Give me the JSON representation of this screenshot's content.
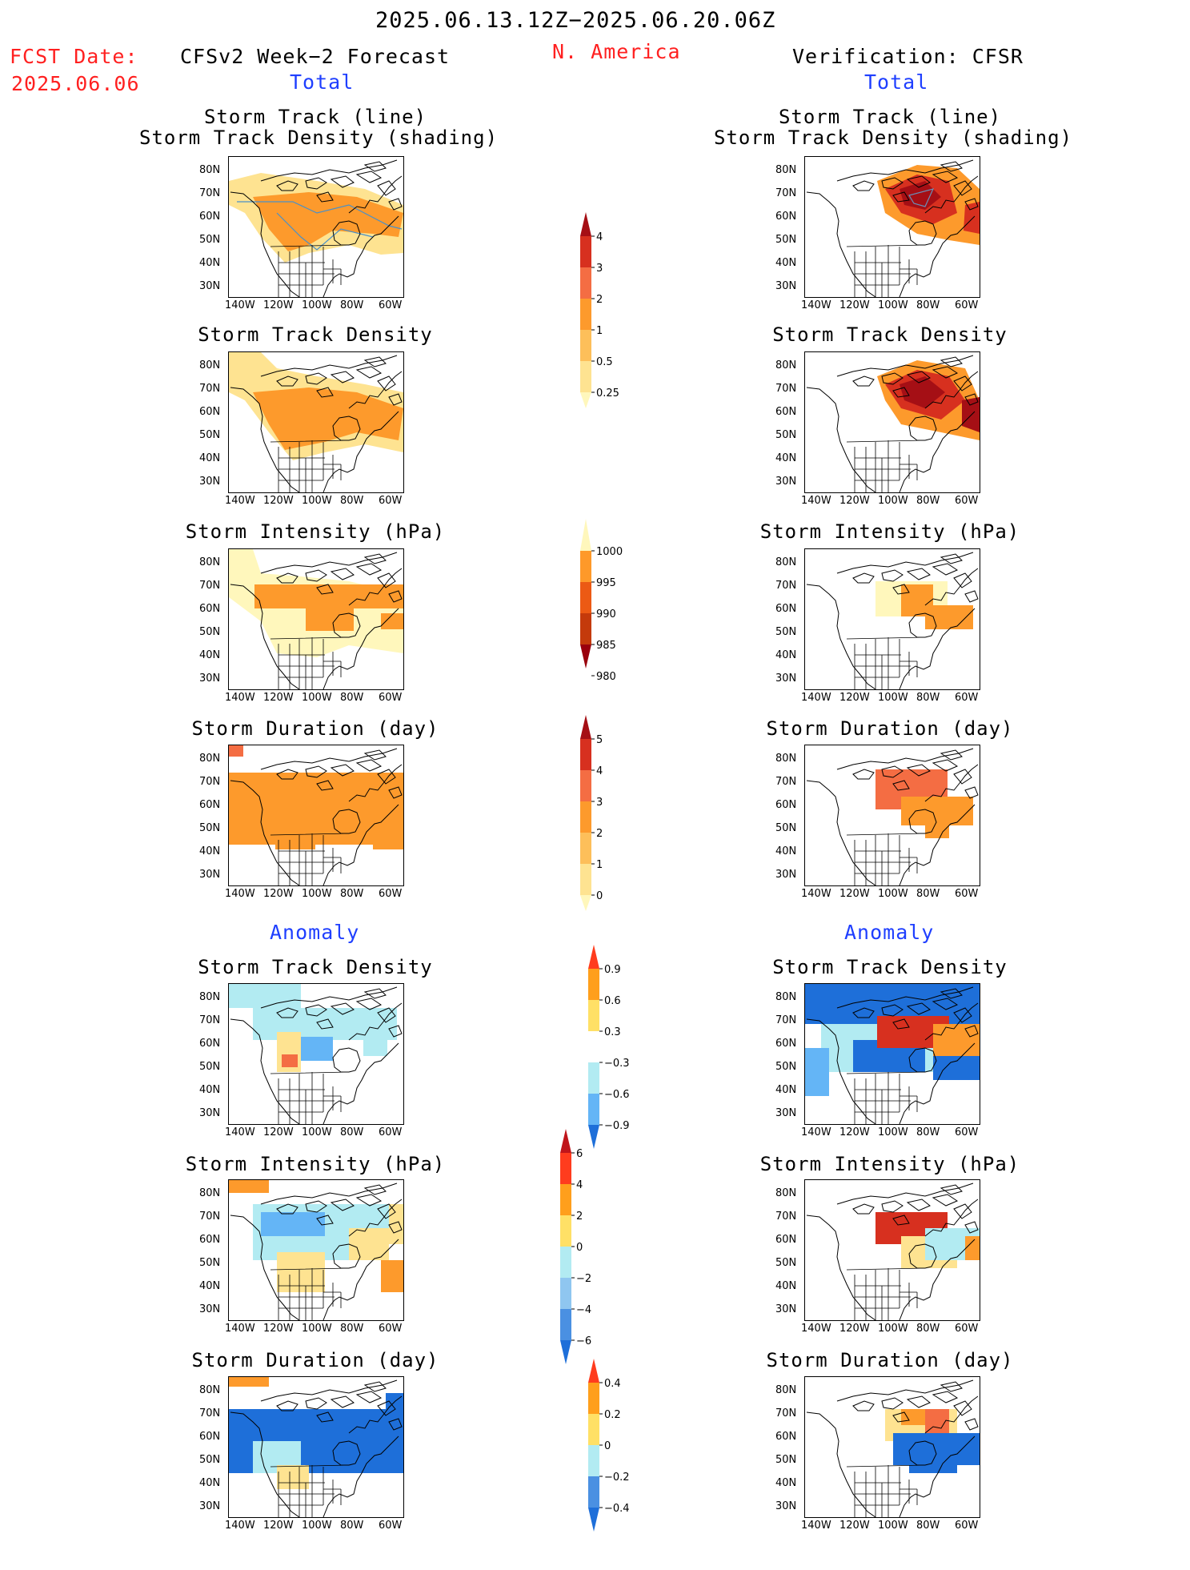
{
  "header": {
    "period": "2025.06.13.12Z−2025.06.20.06Z",
    "fcst_label": "FCST Date:",
    "fcst_date": "2025.06.06",
    "left_title": "CFSv2 Week−2 Forecast",
    "region": "N. America",
    "right_title": "Verification: CFSR"
  },
  "sections": {
    "total": "Total",
    "anomaly": "Anomaly"
  },
  "panel_titles": {
    "track_line": "Storm Track (line)",
    "track_shading": "Storm Track Density (shading)",
    "density": "Storm Track Density",
    "intensity": "Storm Intensity (hPa)",
    "duration": "Storm Duration (day)"
  },
  "axes": {
    "lat_ticks": [
      "80N",
      "70N",
      "60N",
      "50N",
      "40N",
      "30N"
    ],
    "lon_ticks": [
      "140W",
      "120W",
      "100W",
      "80W",
      "60W"
    ]
  },
  "colorbars": {
    "total_density": {
      "labels": [
        "4",
        "3",
        "2",
        "1",
        "0.5",
        "0.25"
      ],
      "colors": [
        "#a50f15",
        "#d7301f",
        "#f46d43",
        "#fd9a2c",
        "#fdbf5a",
        "#fee391",
        "#fff7bc"
      ]
    },
    "total_intensity": {
      "labels": [
        "1000",
        "995",
        "990",
        "985",
        "980"
      ],
      "colors": [
        "#fff7bc",
        "#fe9929",
        "#ec5a14",
        "#c43a0b",
        "#99000d"
      ]
    },
    "total_duration": {
      "labels": [
        "5",
        "4",
        "3",
        "2",
        "1",
        "0"
      ],
      "colors": [
        "#a50f15",
        "#d7301f",
        "#f46d43",
        "#fd9a2c",
        "#fdbf5a",
        "#fee391",
        "#fff7bc"
      ]
    },
    "anom_density": {
      "labels": [
        "0.9",
        "0.6",
        "0.3",
        "−0.3",
        "−0.6",
        "−0.9"
      ],
      "colors": [
        "#ff3c1e",
        "#ff9f1c",
        "#ffe066",
        "#ffffff",
        "#b2ebf2",
        "#64b5f6",
        "#1e6fd9"
      ]
    },
    "anom_intensity": {
      "labels": [
        "6",
        "4",
        "2",
        "0",
        "−2",
        "−4",
        "−6"
      ],
      "colors": [
        "#c0151b",
        "#ff3c1e",
        "#ff9f1c",
        "#ffe066",
        "#b2ebf2",
        "#8fc6f0",
        "#4a90e2",
        "#1e6fd9"
      ]
    },
    "anom_duration": {
      "labels": [
        "0.4",
        "0.2",
        "0",
        "−0.2",
        "−0.4"
      ],
      "colors": [
        "#ff3c1e",
        "#ff9f1c",
        "#ffe066",
        "#b2ebf2",
        "#4a90e2",
        "#1e6fd9"
      ]
    }
  },
  "map_colors": {
    "light_yellow": "#fff7bc",
    "yellow": "#fee391",
    "light_orange": "#fdbf5a",
    "orange": "#fd9a2c",
    "dark_orange": "#f46d43",
    "red": "#d7301f",
    "dark_red": "#a50f15",
    "light_blue": "#b2ebf2",
    "mid_blue": "#64b5f6",
    "blue": "#1e6fd9"
  }
}
